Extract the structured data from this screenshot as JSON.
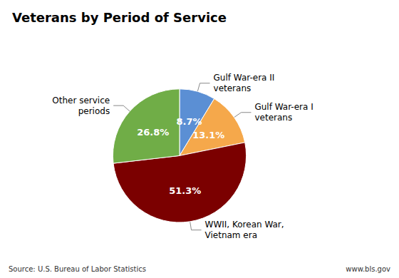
{
  "chart_data": {
    "type": "pie",
    "title": "Veterans by Period of Service",
    "categories": [
      "Gulf War-era II\nveterans",
      "Gulf War-era I\nveterans",
      "WWII, Korean War,\nVietnam era",
      "Other service\nperiods"
    ],
    "values": [
      8.7,
      13.1,
      51.3,
      26.8
    ],
    "value_labels": [
      "8.7%",
      "13.1%",
      "51.3%",
      "26.8%"
    ],
    "data_labels": true,
    "colors": [
      "#5B8FD4",
      "#F5A84B",
      "#7B0000",
      "#70AD47"
    ],
    "annotations": [
      "Source: U.S. Bureau of Labor Statistics",
      "www.bls.gov"
    ]
  }
}
